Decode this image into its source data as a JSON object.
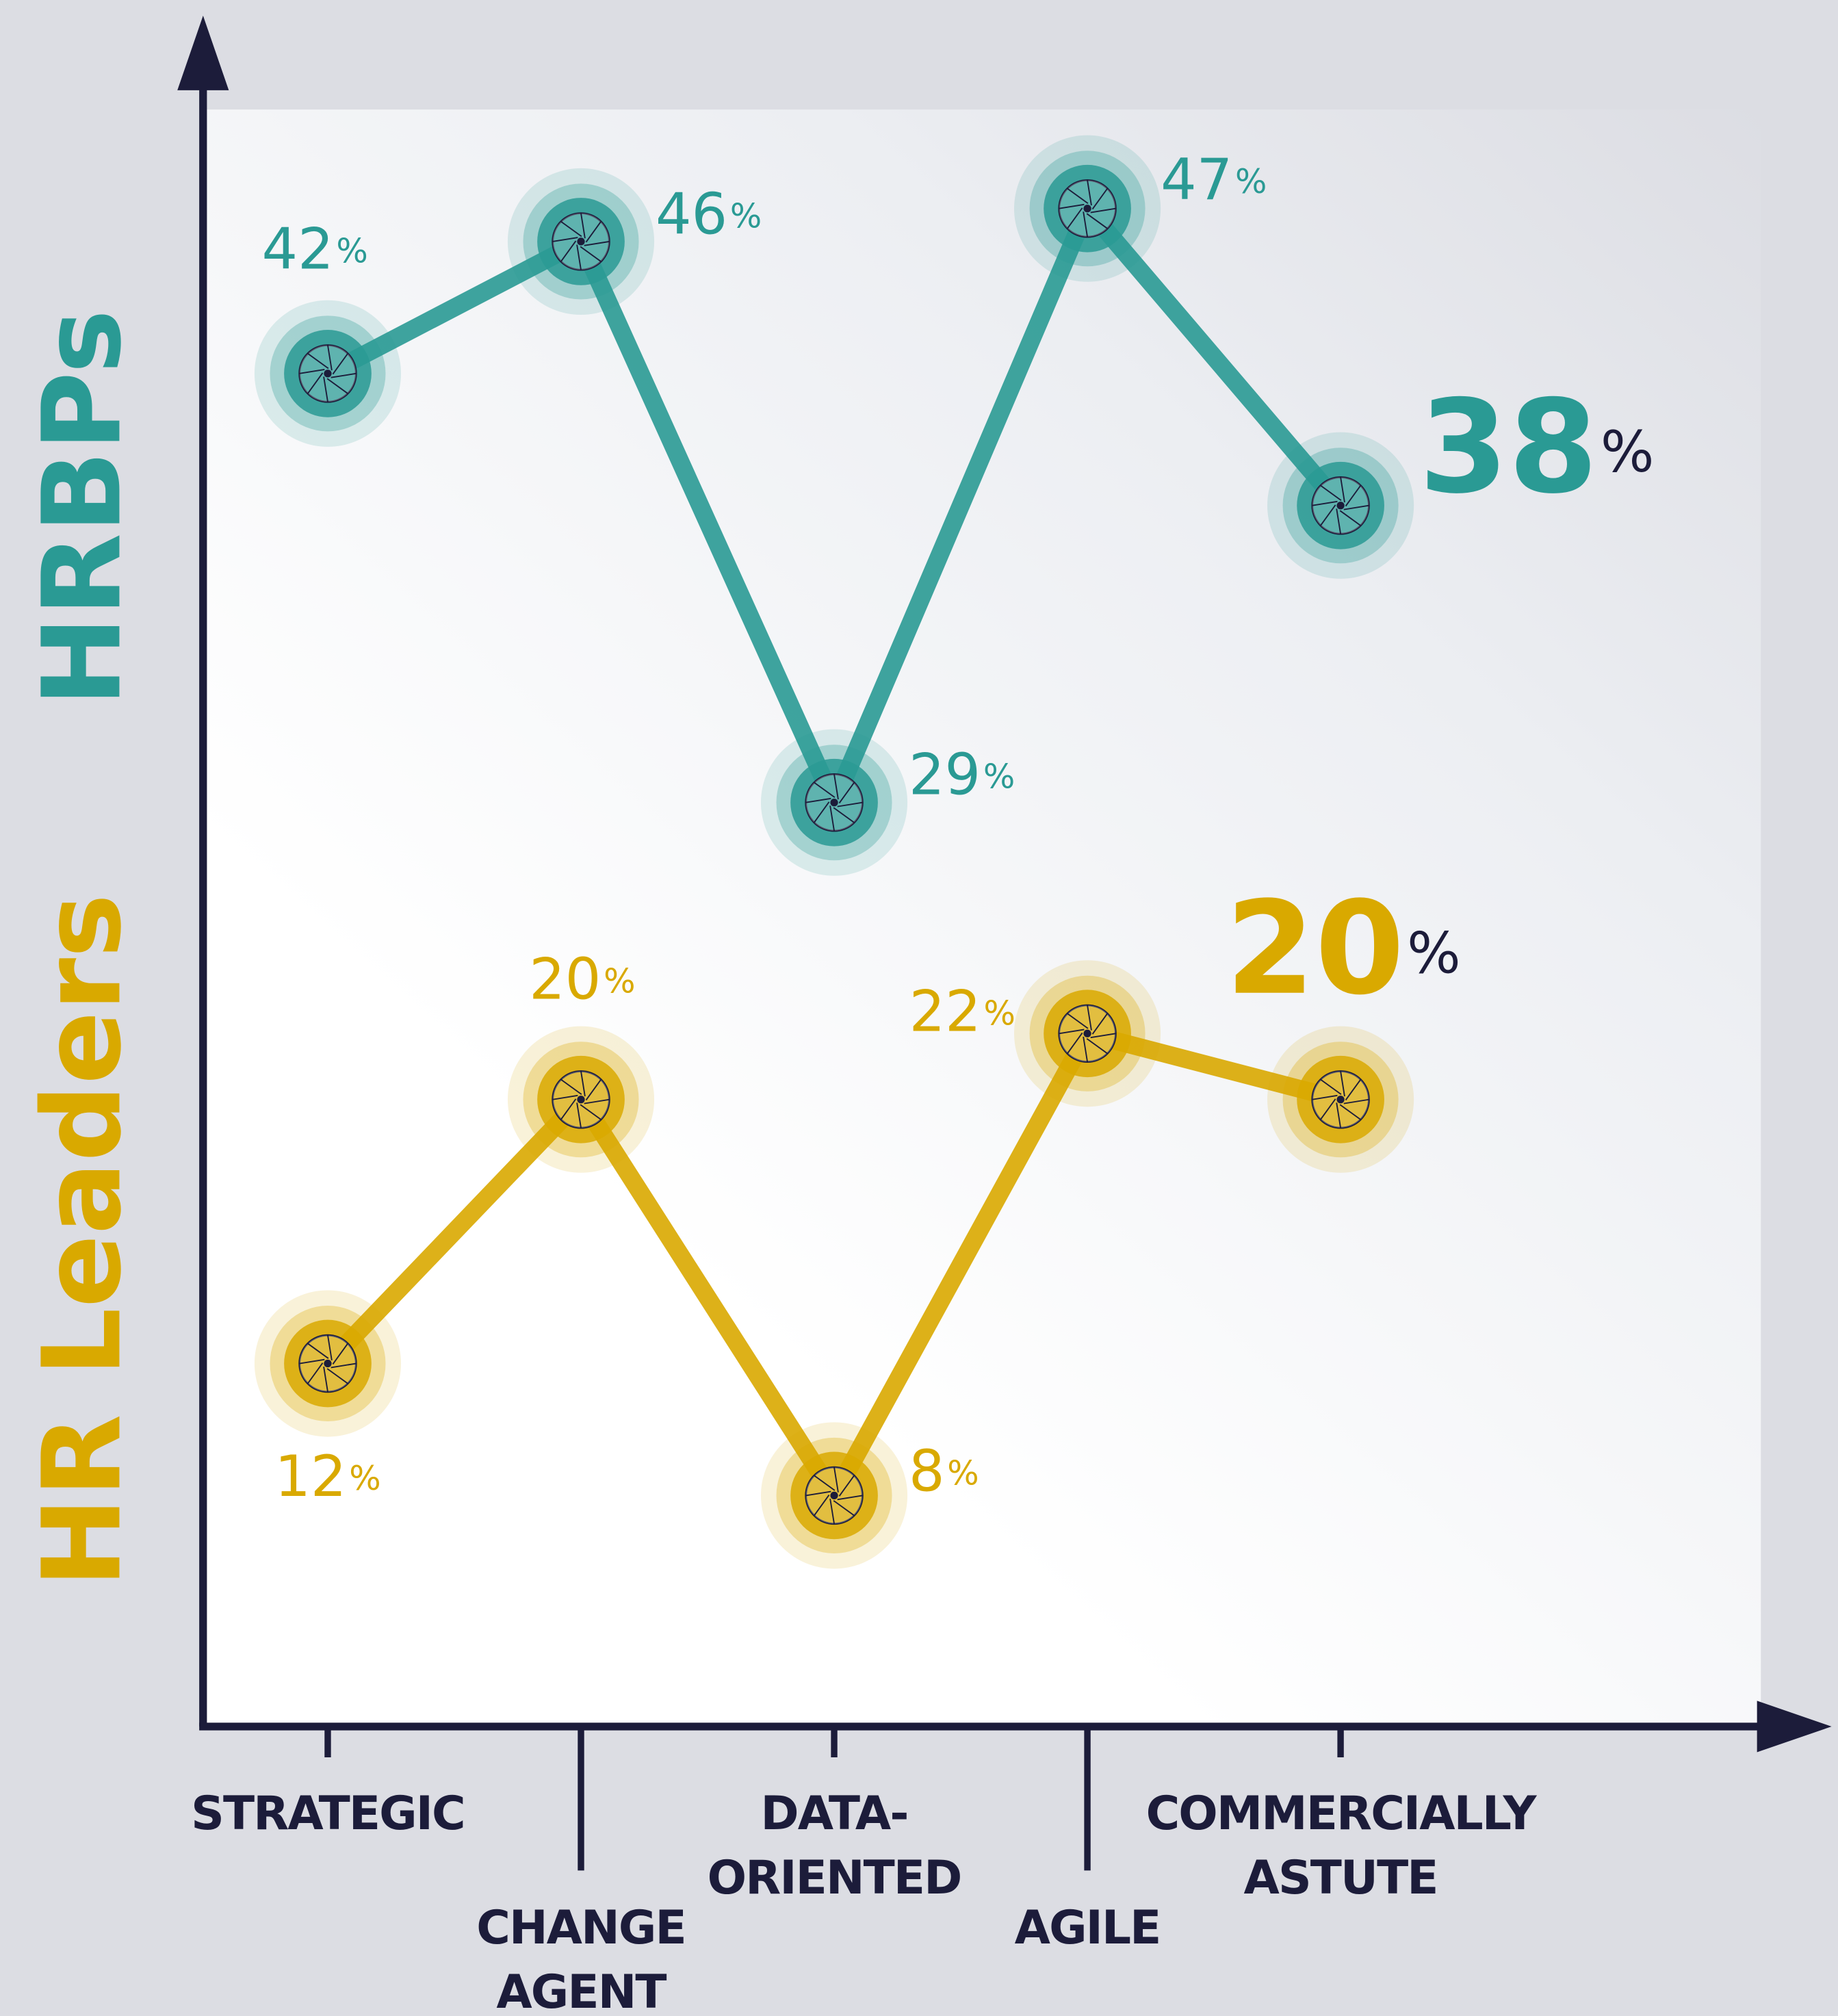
{
  "chart_data": {
    "type": "line",
    "unit": "%",
    "categories": [
      [
        "STRATEGIC"
      ],
      [
        "CHANGE",
        "AGENT"
      ],
      [
        "DATA-",
        "ORIENTED"
      ],
      [
        "AGILE"
      ],
      [
        "COMMERCIALLY",
        "ASTUTE"
      ]
    ],
    "series": [
      {
        "name": "HRBPs",
        "color": "#2a9a94",
        "values": [
          42,
          46,
          29,
          47,
          38
        ]
      },
      {
        "name": "HR Leaders",
        "color": "#d9a900",
        "values": [
          12,
          20,
          8,
          22,
          20
        ]
      }
    ],
    "ylim": [
      1,
      50
    ]
  }
}
